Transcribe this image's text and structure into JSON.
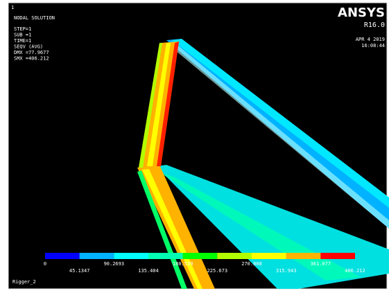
{
  "header": {
    "window_number": "1",
    "title": "NODAL SOLUTION",
    "lines": [
      "STEP=1",
      "SUB =1",
      "TIME=1",
      "SEQV     (AVG)",
      "DMX =77.9677",
      "SMX =406.212"
    ]
  },
  "brand": {
    "name": "ANSYS",
    "version": "R16.0",
    "date": "APR  4 2019",
    "time": "16:08:44"
  },
  "legend": {
    "labels": [
      "0",
      "45.1347",
      "90.2693",
      "135.404",
      "180.539",
      "225.673",
      "270.808",
      "315.943",
      "361.077",
      "406.212"
    ],
    "colors": [
      "#0000ff",
      "#00b2ff",
      "#00ffff",
      "#00ffb2",
      "#00ff00",
      "#b2ff00",
      "#ffff00",
      "#ffb200",
      "#ff0000"
    ]
  },
  "footer": {
    "model_name": "Rigger_2"
  }
}
